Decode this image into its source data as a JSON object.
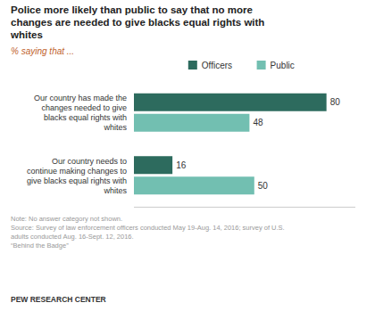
{
  "chart_data": {
    "type": "bar",
    "orientation": "horizontal",
    "title": "Police more likely than public to say that no more\nchanges are needed to give blacks equal rights with\nwhites",
    "subtitle": "% saying that ...",
    "categories": [
      "Our country has made the\nchanges needed to give\nblacks equal rights with\nwhites",
      "Our country needs to\ncontinue making changes to\ngive blacks equal rights with\nwhites"
    ],
    "series": [
      {
        "name": "Officers",
        "color": "#2d6b5e",
        "values": [
          80,
          16
        ]
      },
      {
        "name": "Public",
        "color": "#72bfb1",
        "values": [
          48,
          50
        ]
      }
    ],
    "xlim": [
      0,
      92
    ],
    "data_labels": true,
    "tick_labels": "y",
    "grid": false,
    "legend": "top",
    "annotations": [
      "Note: No answer category not shown.\nSource: Survey of law enforcement officers conducted May 19-Aug. 14, 2016; survey of U.S.\nadults conducted Aug. 16-Sept. 12, 2016.\n“Behind the Badge”",
      "PEW RESEARCH CENTER"
    ]
  }
}
